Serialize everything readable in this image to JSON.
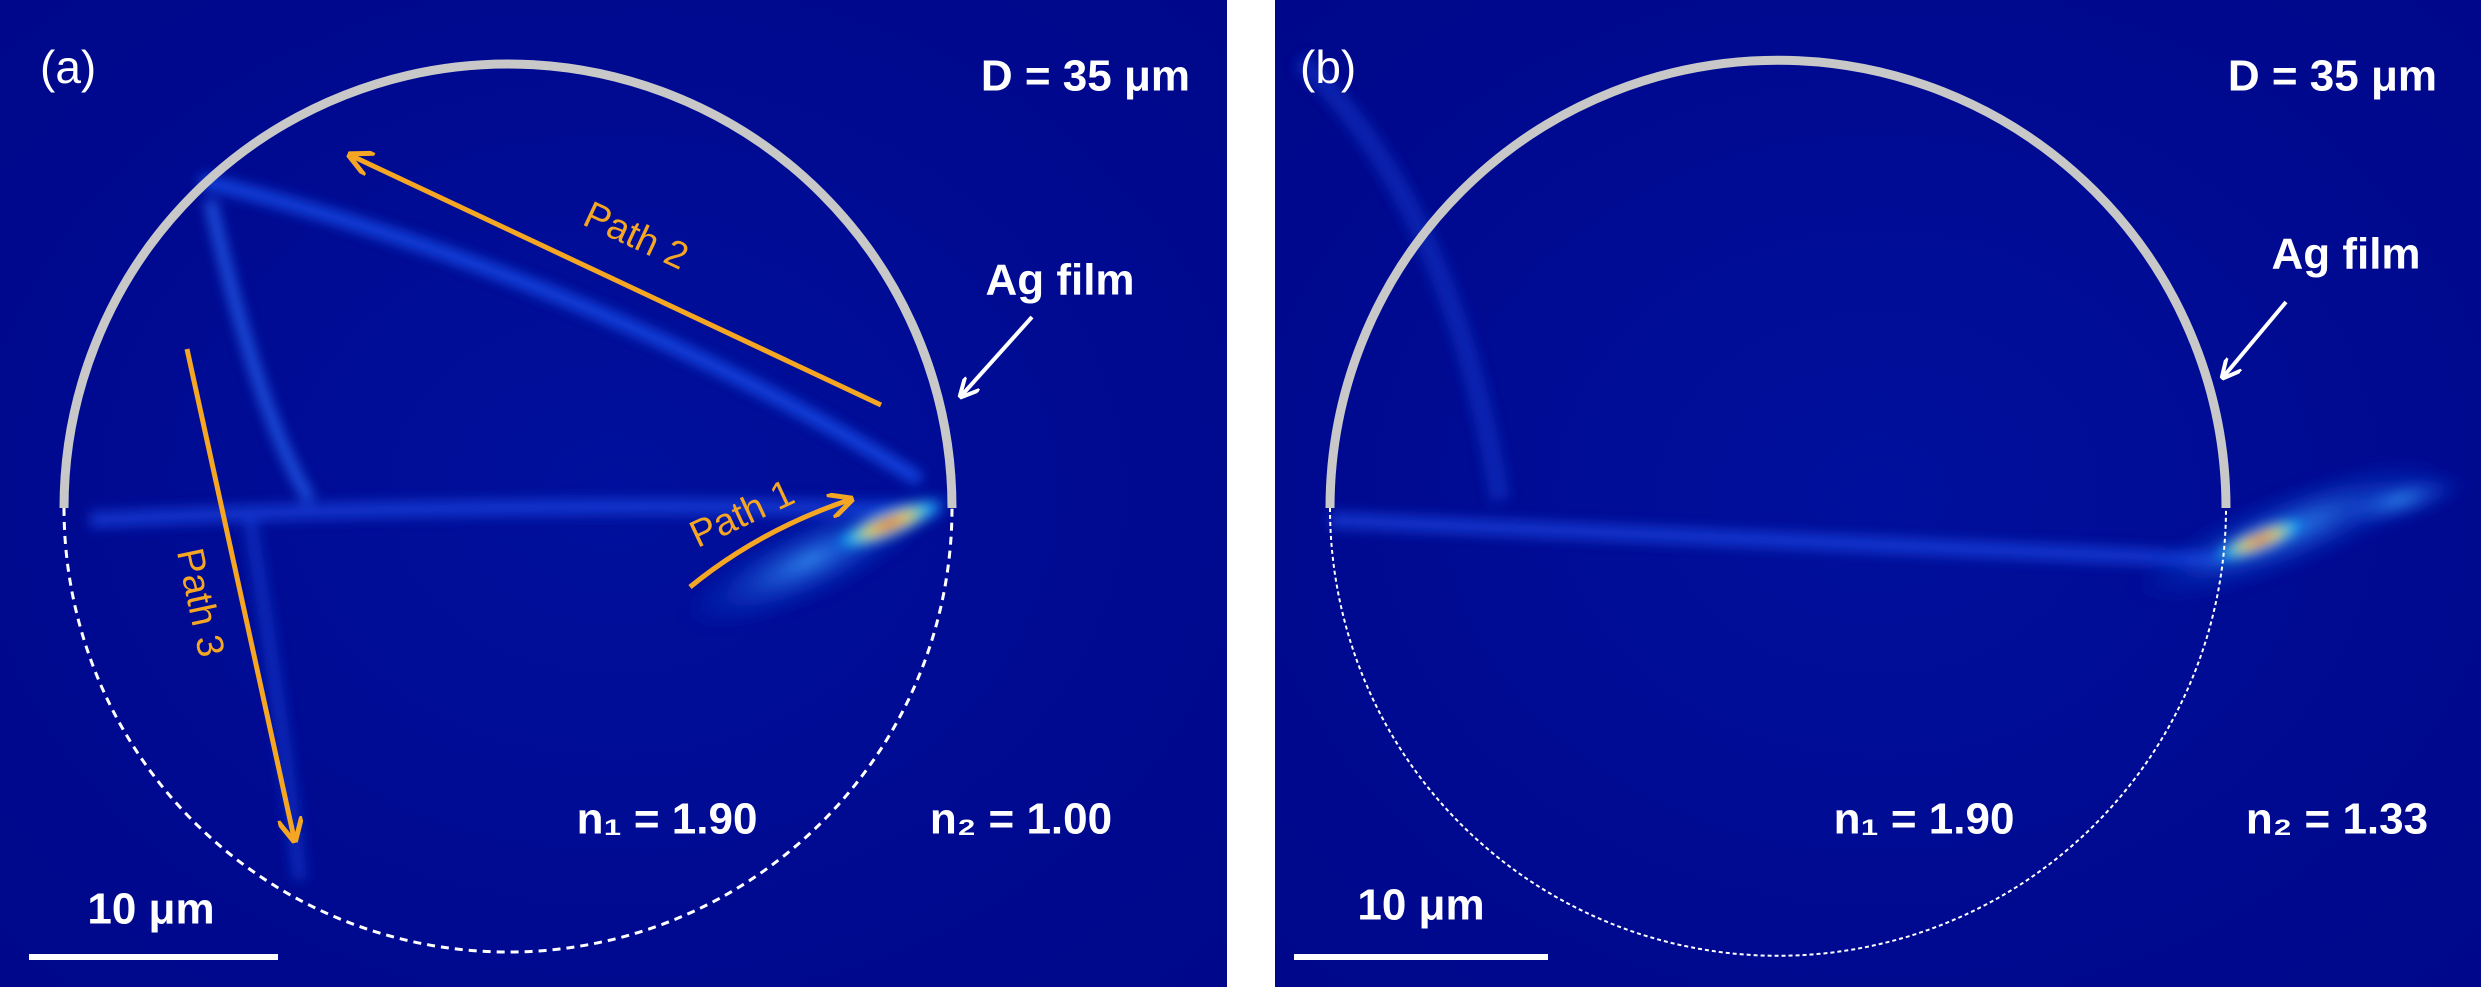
{
  "panels": [
    {
      "label": "(a)",
      "diameter": "D = 35 μm",
      "film": "Ag film",
      "n1": "n₁ = 1.90",
      "n2": "n₂ = 1.00",
      "scale_bar": "10 μm",
      "paths": [
        "Path 1",
        "Path 2",
        "Path 3"
      ]
    },
    {
      "label": "(b)",
      "diameter": "D = 35 μm",
      "film": "Ag film",
      "n1": "n₁ = 1.90",
      "n2": "n₂ = 1.33",
      "scale_bar": "10 μm"
    }
  ]
}
